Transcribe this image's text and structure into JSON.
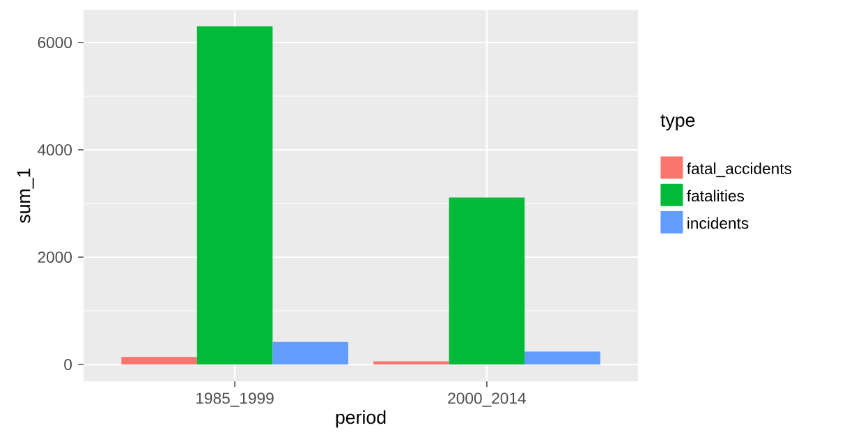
{
  "chart_data": {
    "type": "bar",
    "xlabel": "period",
    "ylabel": "sum_1",
    "legend_title": "type",
    "categories": [
      "1985_1999",
      "2000_2014"
    ],
    "series": [
      {
        "name": "fatal_accidents",
        "color": "#f8766d",
        "values": [
          140,
          60
        ]
      },
      {
        "name": "fatalities",
        "color": "#00ba38",
        "values": [
          6300,
          3110
        ]
      },
      {
        "name": "incidents",
        "color": "#619cff",
        "values": [
          420,
          240
        ]
      }
    ],
    "ylim": [
      -315,
      6610
    ],
    "yticks": [
      0,
      {
        "value": 1000,
        "label": null
      },
      2000,
      {
        "value": 3000,
        "label": null
      },
      4000,
      {
        "value": 5000,
        "label": null
      },
      6000
    ],
    "grid": true,
    "legend": "right"
  }
}
